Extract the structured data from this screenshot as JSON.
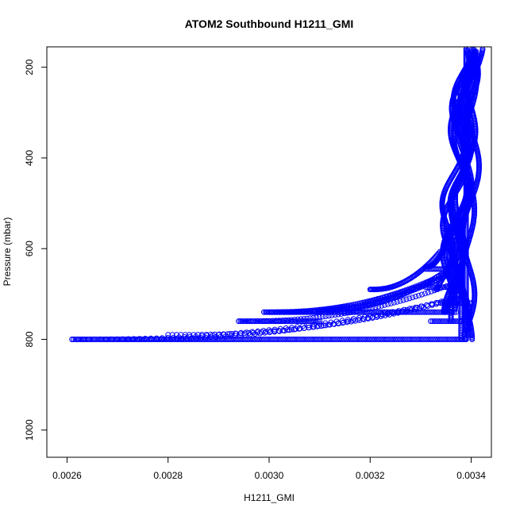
{
  "chart_data": {
    "type": "scatter",
    "title": "ATOM2 Southbound H1211_GMI",
    "xlabel": "H1211_GMI",
    "ylabel": "Pressure (mbar)",
    "xlim": [
      0.00256,
      0.00344
    ],
    "ylim": [
      1060,
      155
    ],
    "y_inverted": true,
    "x_ticks": [
      "0.0026",
      "0.0028",
      "0.0030",
      "0.0032",
      "0.0034"
    ],
    "x_tick_values": [
      0.0026,
      0.0028,
      0.003,
      0.0032,
      0.0034
    ],
    "y_ticks": [
      "200",
      "400",
      "600",
      "800",
      "1000"
    ],
    "y_tick_values": [
      200,
      400,
      600,
      800,
      1000
    ],
    "grid": false,
    "point_style": "open-circle",
    "colors": {
      "points": "#0000ff",
      "axis": "#000000",
      "background": "#ffffff"
    },
    "curves": [
      {
        "top_pressure": 155,
        "base_pressure": 800,
        "x_top": 0.0034,
        "x_base": 0.00339,
        "x_end": 0.00261,
        "wiggle": 1.2e-05,
        "phase": 0.0
      },
      {
        "top_pressure": 155,
        "base_pressure": 800,
        "x_top": 0.00339,
        "x_base": 0.00338,
        "x_end": 0.0027,
        "wiggle": 1.6e-05,
        "phase": 1.1
      },
      {
        "top_pressure": 160,
        "base_pressure": 790,
        "x_top": 0.00341,
        "x_base": 0.00339,
        "x_end": 0.0028,
        "wiggle": 1.4e-05,
        "phase": 2.0
      },
      {
        "top_pressure": 160,
        "base_pressure": 760,
        "x_top": 0.00338,
        "x_base": 0.00337,
        "x_end": 0.00294,
        "wiggle": 1.8e-05,
        "phase": 0.6
      },
      {
        "top_pressure": 165,
        "base_pressure": 740,
        "x_top": 0.0034,
        "x_base": 0.00336,
        "x_end": 0.00299,
        "wiggle": 1.6e-05,
        "phase": 2.7
      },
      {
        "top_pressure": 165,
        "base_pressure": 740,
        "x_top": 0.00339,
        "x_base": 0.00335,
        "x_end": 0.003,
        "wiggle": 2e-05,
        "phase": 1.8
      },
      {
        "top_pressure": 170,
        "base_pressure": 740,
        "x_top": 0.00341,
        "x_base": 0.00336,
        "x_end": 0.00303,
        "wiggle": 1.4e-05,
        "phase": 3.4
      },
      {
        "top_pressure": 170,
        "base_pressure": 735,
        "x_top": 0.0034,
        "x_base": 0.00335,
        "x_end": 0.0031,
        "wiggle": 1.8e-05,
        "phase": 0.3
      },
      {
        "top_pressure": 175,
        "base_pressure": 690,
        "x_top": 0.00339,
        "x_base": 0.00334,
        "x_end": 0.0032,
        "wiggle": 1.6e-05,
        "phase": 2.3
      },
      {
        "top_pressure": 175,
        "base_pressure": 640,
        "x_top": 0.0034,
        "x_base": 0.00336,
        "x_end": 0.00331,
        "wiggle": 1.4e-05,
        "phase": 1.4
      }
    ],
    "horizontal_runs": [
      {
        "pressure": 800,
        "x_from": 0.00261,
        "x_to": 0.00339
      },
      {
        "pressure": 740,
        "x_from": 0.00299,
        "x_to": 0.00337
      },
      {
        "pressure": 760,
        "x_from": 0.00294,
        "x_to": 0.0031
      },
      {
        "pressure": 760,
        "x_from": 0.00332,
        "x_to": 0.00338
      },
      {
        "pressure": 720,
        "x_from": 0.00334,
        "x_to": 0.0034
      },
      {
        "pressure": 685,
        "x_from": 0.00331,
        "x_to": 0.00337
      },
      {
        "pressure": 645,
        "x_from": 0.00331,
        "x_to": 0.00335
      }
    ],
    "vertical_runs": [
      {
        "x": 0.00339,
        "p_from": 160,
        "p_to": 780
      },
      {
        "x": 0.00336,
        "p_from": 640,
        "p_to": 760
      },
      {
        "x": 0.00338,
        "p_from": 700,
        "p_to": 800
      }
    ]
  }
}
